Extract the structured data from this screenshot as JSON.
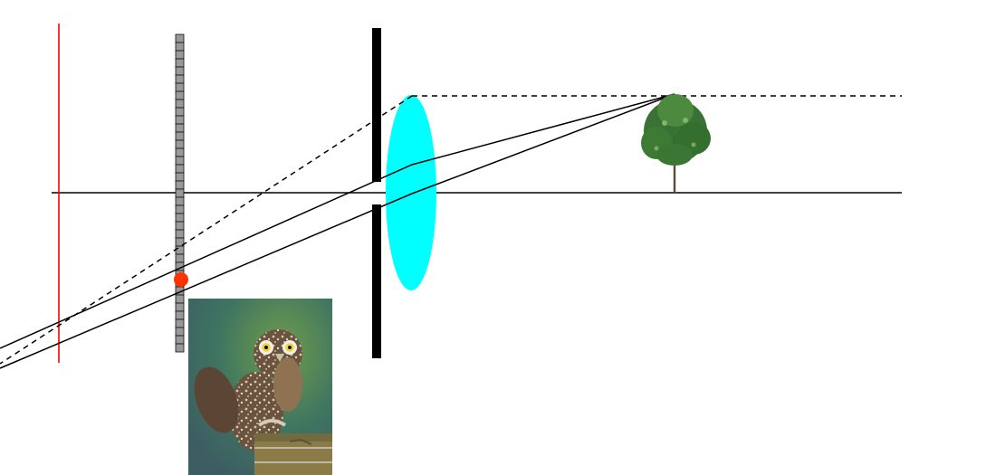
{
  "diagram": {
    "components": [
      "image-plane",
      "sensor",
      "aperture-stop",
      "lens",
      "tree-object",
      "owl-photo",
      "image-point"
    ],
    "colors": {
      "background": "#ffffff",
      "axis": "#000000",
      "ray": "#000000",
      "image_plane": "#ff0000",
      "sensor_fill": "#999999",
      "aperture": "#000000",
      "lens": "#00ffff",
      "image_point": "#ff3300",
      "tree_trunk": "#5a4a3a",
      "tree_foliage": "#2f6a2a"
    },
    "icons": {
      "object": "tree-icon",
      "photo": "owl-photo-icon"
    }
  }
}
